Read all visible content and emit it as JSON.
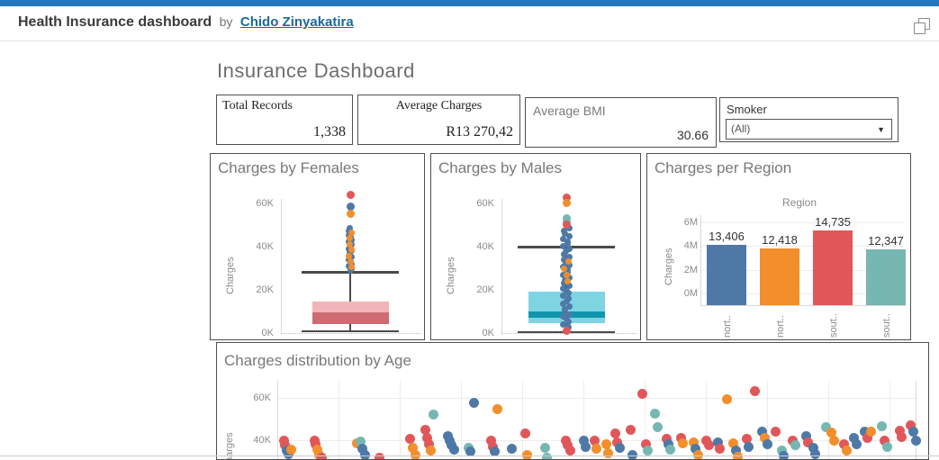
{
  "header": {
    "title": "Health Insurance dashboard",
    "by": "by",
    "author": "Chido Zinyakatira"
  },
  "dashboard_title": "Insurance Dashboard",
  "kpis": [
    {
      "label": "Total Records",
      "value": "1,338"
    },
    {
      "label": "Average Charges",
      "value": "R13 270,42"
    },
    {
      "label": "Average BMI",
      "value": "30.66"
    }
  ],
  "filter": {
    "label": "Smoker",
    "value": "(All)"
  },
  "colors": {
    "b": "#4e79a7",
    "o": "#f28e2b",
    "r": "#e15759",
    "t": "#76b7b2"
  },
  "chart_data": [
    {
      "type": "box",
      "title": "Charges by Females",
      "ylabel": "Charges",
      "yticks": [
        "0K",
        "20K",
        "40K",
        "60K"
      ],
      "ylim": [
        0,
        65
      ],
      "box": {
        "q1": 4,
        "median": 9.5,
        "q3": 14.5,
        "whisker_low": 1.3,
        "whisker_high": 28.7,
        "segments": [
          {
            "from": 4,
            "to": 9.5,
            "color": "#ce6b73"
          },
          {
            "from": 9.5,
            "to": 14.5,
            "color": "#f2b4b8"
          }
        ]
      },
      "outlier_stacks": [
        {
          "min": 28.9,
          "max": 48.4,
          "count": 20,
          "color": "b",
          "jitter": 2
        },
        {
          "min": 30.5,
          "max": 46.5,
          "count": 7,
          "color": "o",
          "jitter": 2
        }
      ],
      "outliers": [
        [
          63.8,
          "r"
        ],
        [
          58.6,
          "b"
        ],
        [
          55.4,
          "o"
        ]
      ]
    },
    {
      "type": "box",
      "title": "Charges by Males",
      "ylabel": "Charges",
      "yticks": [
        "0K",
        "20K",
        "40K",
        "60K"
      ],
      "ylim": [
        0,
        65
      ],
      "box": {
        "q1": 4.5,
        "median": 9.8,
        "q3": 19,
        "whisker_low": 1.0,
        "whisker_high": 40.3,
        "segments": [
          {
            "from": 4.5,
            "to": 19,
            "color": "#7fd4e2"
          },
          {
            "from": 7,
            "to": 9.8,
            "color": "#0f96ad"
          }
        ]
      },
      "outlier_stacks": [
        {
          "min": 1.5,
          "max": 48.5,
          "count": 40,
          "color": "b",
          "jitter": 4
        },
        {
          "min": 24,
          "max": 33,
          "count": 4,
          "color": "o",
          "jitter": 3
        }
      ],
      "outliers": [
        [
          62.6,
          "r"
        ],
        [
          60.3,
          "o"
        ],
        [
          53.2,
          "t"
        ],
        [
          51.6,
          "t"
        ],
        [
          50.3,
          "r"
        ],
        [
          0.9,
          "r"
        ]
      ]
    },
    {
      "type": "bar",
      "title": "Charges per Region",
      "column_header": "Region",
      "ylabel": "Charges",
      "yticks": [
        "0M",
        "2M",
        "4M",
        "6M"
      ],
      "ytick_values_M": [
        0,
        2,
        4,
        6
      ],
      "categories": [
        "nort..",
        "nort..",
        "sout..",
        "sout.."
      ],
      "bar_labels": [
        "13,406",
        "12,418",
        "14,735",
        "12,347"
      ],
      "sum_M": [
        4.35,
        4.05,
        5.35,
        4.0
      ],
      "bar_colors": [
        "b",
        "o",
        "r",
        "t"
      ]
    },
    {
      "type": "scatter",
      "title": "Charges distribution by Age",
      "ylabel": "Charges",
      "yticks": [
        "60K",
        "40K"
      ],
      "ytick_values_K": [
        60,
        40
      ],
      "points": [
        [
          0.01,
          40,
          "r"
        ],
        [
          0.012,
          37.5,
          "r"
        ],
        [
          0.015,
          35,
          "b"
        ],
        [
          0.018,
          33.5,
          "b"
        ],
        [
          0.022,
          35.5,
          "o"
        ],
        [
          0.058,
          40,
          "r"
        ],
        [
          0.06,
          38,
          "r"
        ],
        [
          0.063,
          35.5,
          "o"
        ],
        [
          0.066,
          33,
          "o"
        ],
        [
          0.07,
          31.5,
          "r"
        ],
        [
          0.125,
          38.5,
          "o"
        ],
        [
          0.13,
          39.5,
          "t"
        ],
        [
          0.133,
          36,
          "b"
        ],
        [
          0.137,
          33,
          "b"
        ],
        [
          0.16,
          31.5,
          "r"
        ],
        [
          0.208,
          40.5,
          "r"
        ],
        [
          0.212,
          36.5,
          "o"
        ],
        [
          0.216,
          33,
          "o"
        ],
        [
          0.232,
          45,
          "r"
        ],
        [
          0.235,
          41,
          "r"
        ],
        [
          0.238,
          38,
          "r"
        ],
        [
          0.24,
          35,
          "o"
        ],
        [
          0.245,
          52,
          "t"
        ],
        [
          0.267,
          42,
          "b"
        ],
        [
          0.27,
          40,
          "b"
        ],
        [
          0.273,
          37.5,
          "b"
        ],
        [
          0.277,
          35.5,
          "b"
        ],
        [
          0.3,
          36.5,
          "t"
        ],
        [
          0.303,
          34.5,
          "b"
        ],
        [
          0.308,
          57.5,
          "b"
        ],
        [
          0.335,
          40,
          "r"
        ],
        [
          0.338,
          37,
          "r"
        ],
        [
          0.341,
          34.5,
          "b"
        ],
        [
          0.345,
          54.5,
          "o"
        ],
        [
          0.368,
          36,
          "b"
        ],
        [
          0.388,
          43,
          "r"
        ],
        [
          0.392,
          33,
          "o"
        ],
        [
          0.42,
          36.5,
          "t"
        ],
        [
          0.423,
          31.5,
          "t"
        ],
        [
          0.452,
          40,
          "r"
        ],
        [
          0.455,
          37.5,
          "r"
        ],
        [
          0.459,
          35,
          "r"
        ],
        [
          0.48,
          40,
          "b"
        ],
        [
          0.483,
          37,
          "b"
        ],
        [
          0.497,
          40,
          "r"
        ],
        [
          0.5,
          36,
          "o"
        ],
        [
          0.515,
          38,
          "o"
        ],
        [
          0.518,
          34,
          "o"
        ],
        [
          0.53,
          43,
          "r"
        ],
        [
          0.533,
          39,
          "r"
        ],
        [
          0.536,
          36.5,
          "b"
        ],
        [
          0.553,
          45,
          "r"
        ],
        [
          0.556,
          33,
          "b"
        ],
        [
          0.572,
          62,
          "r"
        ],
        [
          0.578,
          38,
          "r"
        ],
        [
          0.581,
          35,
          "t"
        ],
        [
          0.592,
          52.5,
          "t"
        ],
        [
          0.596,
          46,
          "t"
        ],
        [
          0.61,
          40.5,
          "r"
        ],
        [
          0.613,
          38,
          "b"
        ],
        [
          0.616,
          35.5,
          "t"
        ],
        [
          0.632,
          41,
          "r"
        ],
        [
          0.636,
          38.5,
          "o"
        ],
        [
          0.652,
          39,
          "o"
        ],
        [
          0.655,
          36,
          "b"
        ],
        [
          0.659,
          33,
          "o"
        ],
        [
          0.672,
          40,
          "r"
        ],
        [
          0.676,
          37.5,
          "r"
        ],
        [
          0.69,
          39,
          "b"
        ],
        [
          0.693,
          36,
          "r"
        ],
        [
          0.705,
          59.5,
          "o"
        ],
        [
          0.715,
          38.5,
          "o"
        ],
        [
          0.718,
          35,
          "b"
        ],
        [
          0.721,
          32,
          "o"
        ],
        [
          0.735,
          40.5,
          "r"
        ],
        [
          0.738,
          37,
          "b"
        ],
        [
          0.748,
          63,
          "r"
        ],
        [
          0.76,
          44,
          "b"
        ],
        [
          0.764,
          41,
          "o"
        ],
        [
          0.768,
          38,
          "b"
        ],
        [
          0.78,
          44,
          "r"
        ],
        [
          0.79,
          35,
          "t"
        ],
        [
          0.793,
          32.5,
          "b"
        ],
        [
          0.808,
          40,
          "r"
        ],
        [
          0.812,
          37.5,
          "t"
        ],
        [
          0.828,
          42,
          "b"
        ],
        [
          0.832,
          39,
          "r"
        ],
        [
          0.84,
          36.5,
          "b"
        ],
        [
          0.843,
          33.5,
          "b"
        ],
        [
          0.86,
          46,
          "t"
        ],
        [
          0.868,
          43.5,
          "o"
        ],
        [
          0.872,
          40,
          "o"
        ],
        [
          0.888,
          38,
          "r"
        ],
        [
          0.892,
          35,
          "o"
        ],
        [
          0.903,
          41,
          "b"
        ],
        [
          0.907,
          38,
          "b"
        ],
        [
          0.92,
          44,
          "b"
        ],
        [
          0.924,
          41,
          "r"
        ],
        [
          0.93,
          44,
          "o"
        ],
        [
          0.947,
          46.5,
          "t"
        ],
        [
          0.952,
          40,
          "r"
        ],
        [
          0.956,
          37,
          "t"
        ],
        [
          0.975,
          44.5,
          "r"
        ],
        [
          0.978,
          41.5,
          "r"
        ],
        [
          0.992,
          47,
          "r"
        ],
        [
          0.996,
          44,
          "b"
        ],
        [
          1.0,
          40,
          "b"
        ]
      ]
    }
  ]
}
